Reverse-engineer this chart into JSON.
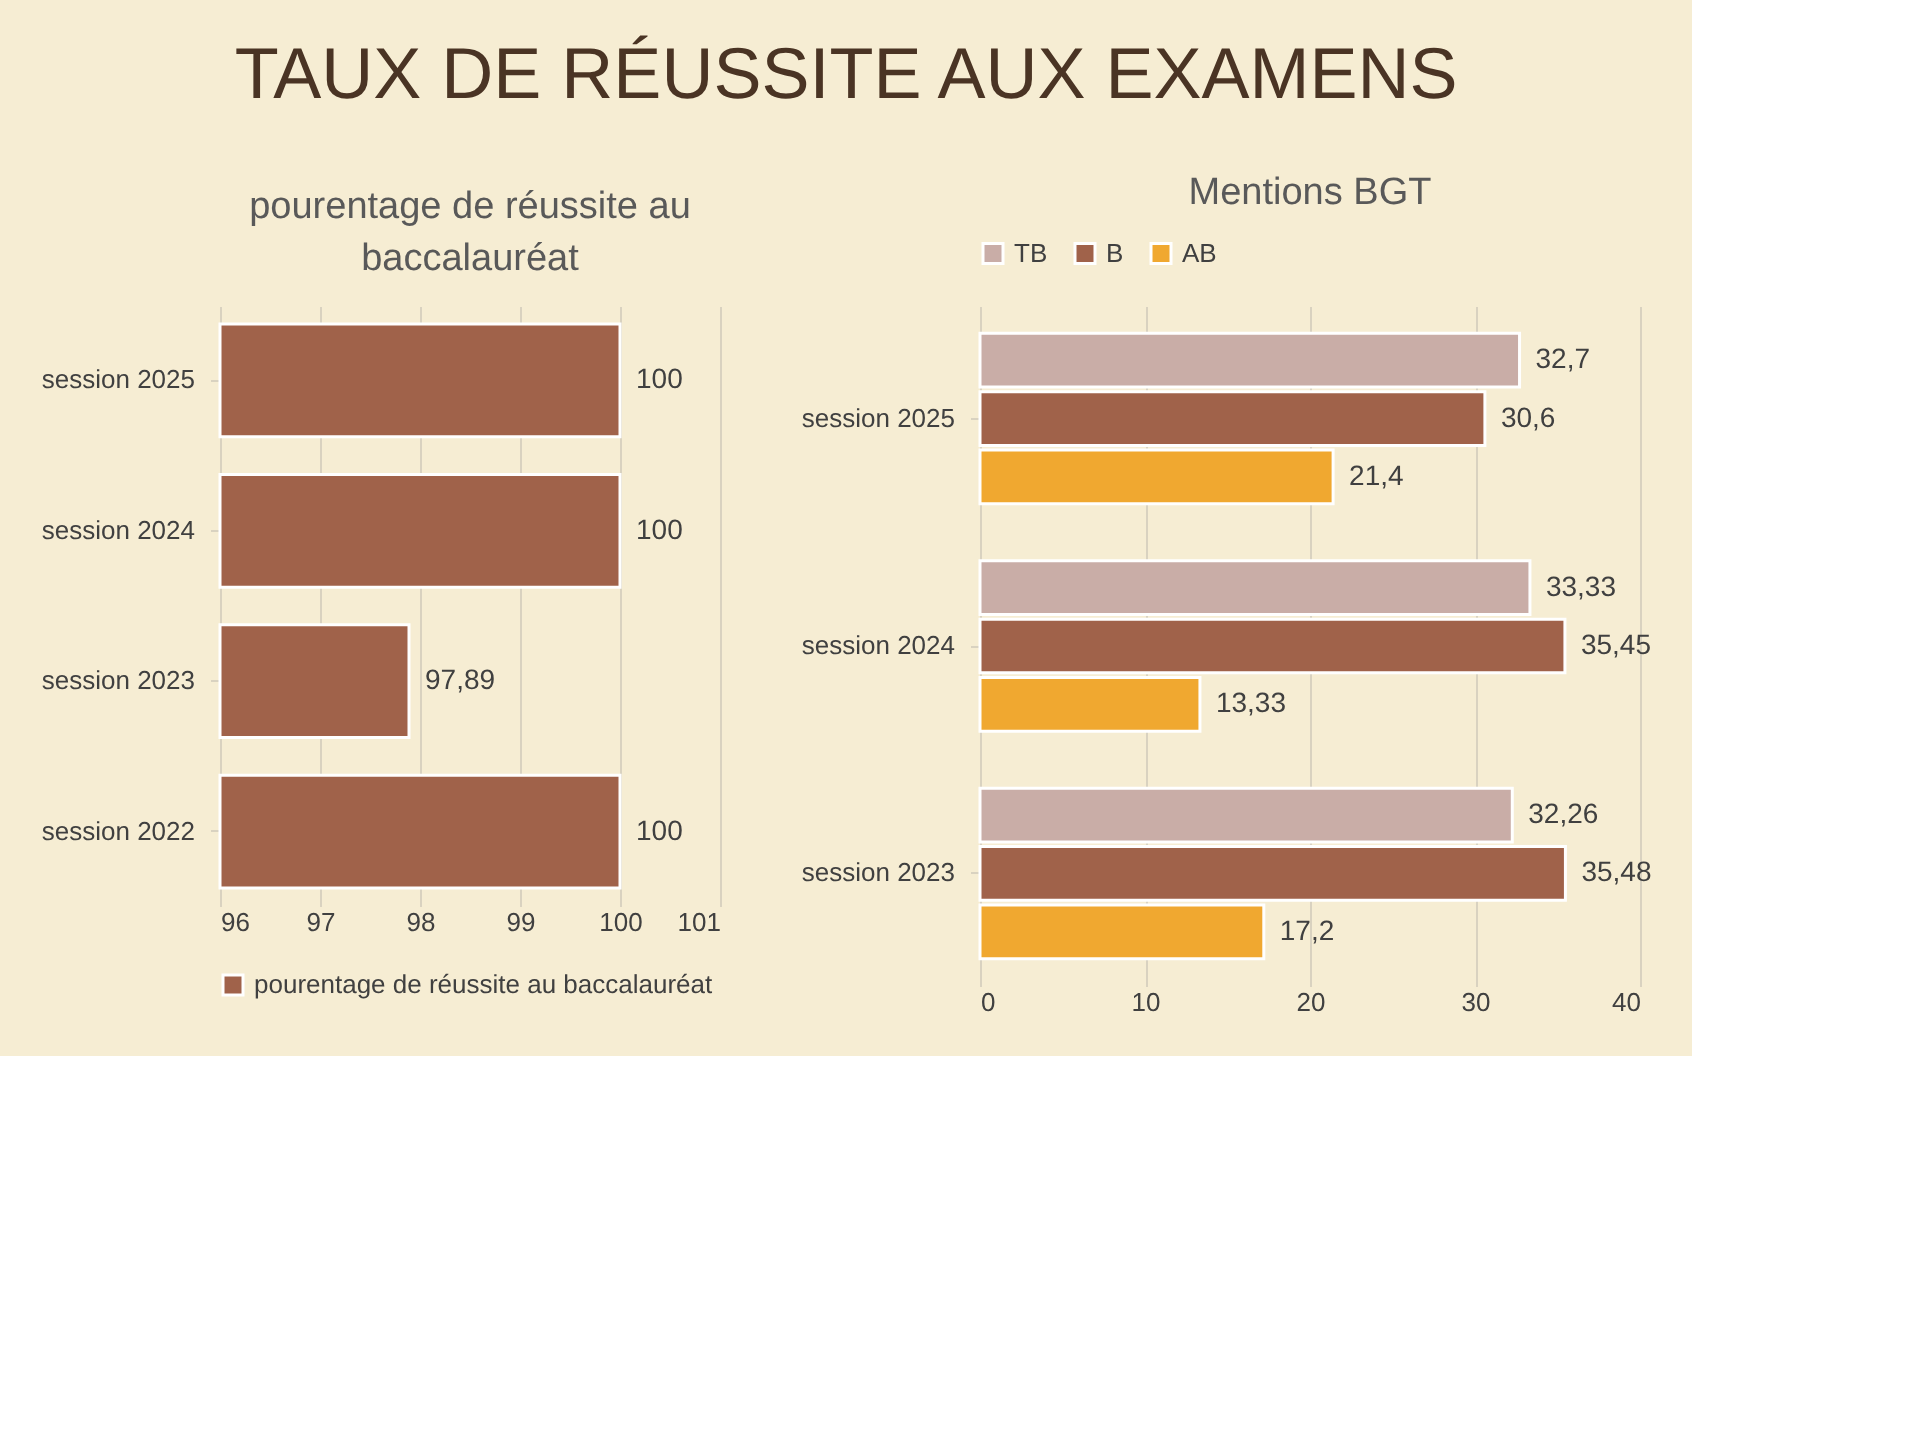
{
  "chart_data": [
    {
      "type": "bar",
      "orientation": "horizontal",
      "title": "pourentage de réussite au baccalauréat",
      "annotations": [
        "TAUX DE RÉUSSITE AUX EXAMENS"
      ],
      "categories": [
        "session 2025",
        "session 2024",
        "session 2023",
        "session 2022"
      ],
      "series": [
        {
          "name": "pourentage de réussite au baccalauréat",
          "color": "#a0624a",
          "values": [
            100,
            100,
            97.89,
            100
          ],
          "value_labels": [
            "100",
            "100",
            "97,89",
            "100"
          ]
        }
      ],
      "xlim": [
        96,
        101
      ],
      "xticks": [
        96,
        97,
        98,
        99,
        100,
        101
      ],
      "grid": "x",
      "legend": "bottom"
    },
    {
      "type": "bar",
      "orientation": "horizontal",
      "title": "Mentions BGT",
      "categories": [
        "session 2025",
        "session 2024",
        "session 2023"
      ],
      "series": [
        {
          "name": "TB",
          "color": "#c9ada7",
          "values": [
            32.7,
            33.33,
            32.26
          ],
          "value_labels": [
            "32,7",
            "33,33",
            "32,26"
          ]
        },
        {
          "name": "B",
          "color": "#a0624a",
          "values": [
            30.6,
            35.45,
            35.48
          ],
          "value_labels": [
            "30,6",
            "35,45",
            "35,48"
          ]
        },
        {
          "name": "AB",
          "color": "#f0a830",
          "values": [
            21.4,
            13.33,
            17.2
          ],
          "value_labels": [
            "21,4",
            "13,33",
            "17,2"
          ]
        }
      ],
      "xlim": [
        0,
        40
      ],
      "xticks": [
        0,
        10,
        20,
        30,
        40
      ],
      "grid": "x",
      "legend": "top"
    }
  ]
}
